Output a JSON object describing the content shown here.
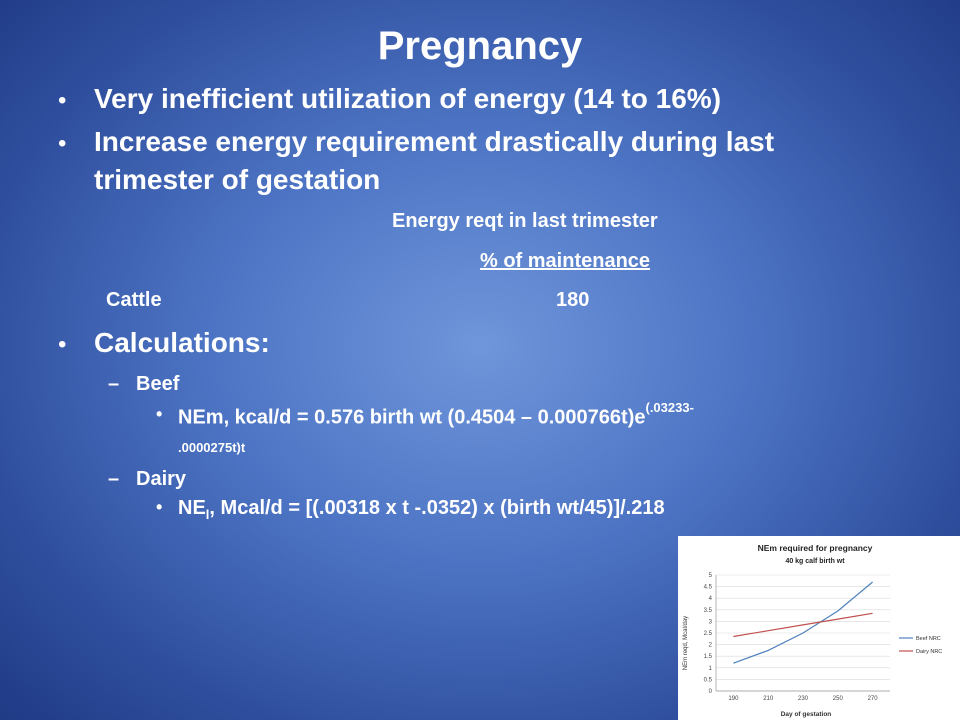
{
  "slide": {
    "title": "Pregnancy",
    "bullet_glyph": "•",
    "bullets": [
      {
        "text": "Very inefficient utilization of energy (14 to 16%)"
      },
      {
        "line1": "Increase energy requirement drastically during last",
        "line2": "trimester of gestation"
      }
    ],
    "energy_table": {
      "header": "Energy reqt in last trimester",
      "subheader": "% of maintenance",
      "row_label": "Cattle",
      "row_value": "180"
    },
    "calculations": {
      "heading": "Calculations:",
      "dash": "–",
      "beef": {
        "label": "Beef",
        "formula_main": "NEm, kcal/d = 0.576 birth wt (0.4504 – 0.000766t)e",
        "formula_sup": "(.03233-",
        "formula_cont": ".0000275t)t"
      },
      "dairy": {
        "label": "Dairy",
        "formula_pre": "NE",
        "formula_sub": "l",
        "formula_post": ", Mcal/d = [(.00318 x t -.0352) x (birth wt/45)]/.218"
      }
    }
  },
  "chart_data": {
    "type": "line",
    "title": "NEm required for pregnancy",
    "subtitle": "40 kg calf birth wt",
    "xlabel": "Day of gestation",
    "ylabel": "NEm reqd, Mcal/day",
    "x": [
      190,
      210,
      230,
      250,
      270
    ],
    "xlim": [
      180,
      280
    ],
    "ylim": [
      0,
      5
    ],
    "yticks": [
      "0",
      "0.5",
      "1",
      "1.5",
      "2",
      "2.5",
      "3",
      "3.5",
      "4",
      "4.5",
      "5"
    ],
    "xticks": [
      "190",
      "210",
      "230",
      "250",
      "270"
    ],
    "grid": true,
    "legend": "right",
    "series": [
      {
        "name": "Beef NRC",
        "values": [
          1.2,
          1.75,
          2.5,
          3.45,
          4.7
        ],
        "color": "#4f81bd"
      },
      {
        "name": "Dairy NRC",
        "values": [
          2.35,
          2.6,
          2.85,
          3.1,
          3.35
        ],
        "color": "#c0504d"
      }
    ]
  }
}
